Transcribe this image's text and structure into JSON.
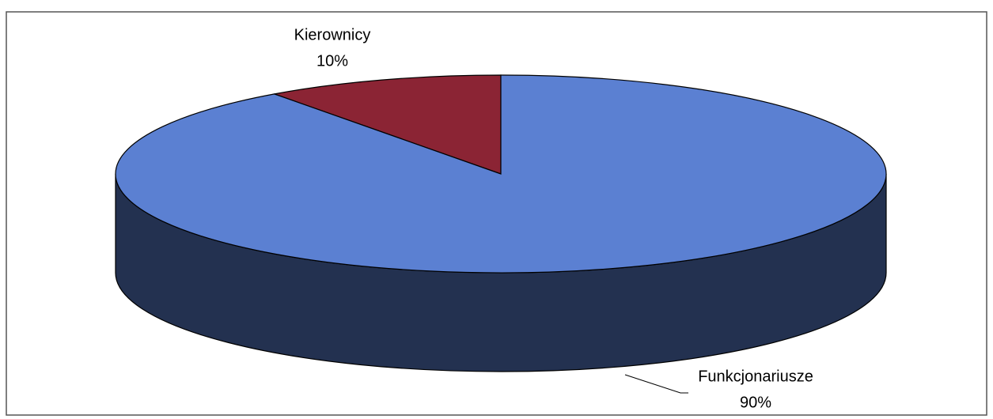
{
  "chart_data": {
    "type": "pie3d",
    "categories": [
      "Kierownicy",
      "Funkcjonariusze"
    ],
    "values": [
      10,
      90
    ],
    "value_labels": [
      "10%",
      "90%"
    ],
    "colors": [
      "#8b2434",
      "#5b80d2"
    ]
  }
}
